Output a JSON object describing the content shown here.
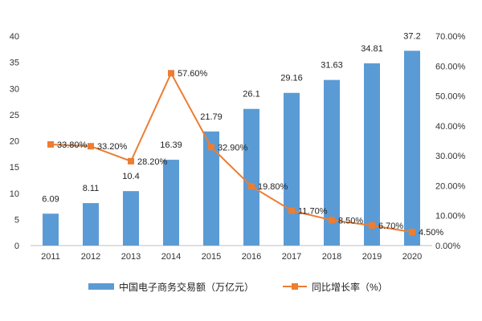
{
  "chart_data": {
    "type": "bar+line",
    "categories": [
      "2011",
      "2012",
      "2013",
      "2014",
      "2015",
      "2016",
      "2017",
      "2018",
      "2019",
      "2020"
    ],
    "series": [
      {
        "name": "中国电子商务交易额（万亿元）",
        "kind": "bar",
        "axis": "left",
        "color": "#5b9bd5",
        "values": [
          6.09,
          8.11,
          10.4,
          16.39,
          21.79,
          26.1,
          29.16,
          31.63,
          34.81,
          37.2
        ],
        "labels": [
          "6.09",
          "8.11",
          "10.4",
          "16.39",
          "21.79",
          "26.1",
          "29.16",
          "31.63",
          "34.81",
          "37.2"
        ]
      },
      {
        "name": "同比增长率（%）",
        "kind": "line",
        "axis": "right",
        "color": "#ed7d31",
        "values": [
          33.8,
          33.2,
          28.2,
          57.6,
          32.9,
          19.8,
          11.7,
          8.5,
          6.7,
          4.5
        ],
        "labels": [
          "33.80%",
          "33.20%",
          "28.20%",
          "57.60%",
          "32.90%",
          "19.80%",
          "11.70%",
          "8.50%",
          "6.70%",
          "4.50%"
        ]
      }
    ],
    "y_left": {
      "min": 0,
      "max": 40,
      "step": 5,
      "ticks": [
        "0",
        "5",
        "10",
        "15",
        "20",
        "25",
        "30",
        "35",
        "40"
      ]
    },
    "y_right": {
      "min": 0,
      "max": 70,
      "step": 10,
      "ticks": [
        "0.00%",
        "10.00%",
        "20.00%",
        "30.00%",
        "40.00%",
        "50.00%",
        "60.00%",
        "70.00%"
      ]
    },
    "grid": false,
    "legend_position": "bottom",
    "title": ""
  }
}
